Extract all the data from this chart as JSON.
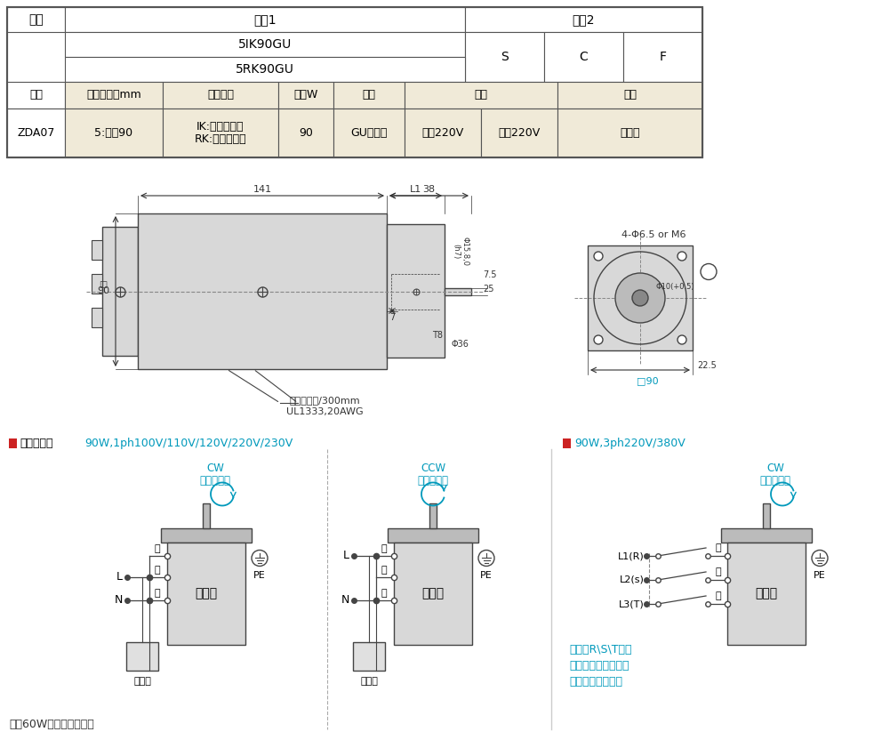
{
  "bg_color": "#ffffff",
  "cell_bg": "#f0ead8",
  "border_color": "#555555",
  "cyan": "#0099bb",
  "red_sq": "#cc2222",
  "dim_color": "#333333",
  "gray_light": "#d8d8d8",
  "gray_mid": "#bbbbbb",
  "gray_dark": "#888888",
  "dg": "#444444",
  "title1_bold": "接线示意图",
  "title1_cyan": " 90W,1ph100V/110V/120V/220V/230V",
  "title2_cyan": "90W,3ph220V/380V",
  "note_bottom": "注：60W以上默认带风扇",
  "note3_line1": "若对换R\\S\\T中任",
  "note3_line2": "意二条，电动机会作",
  "note3_line3": "逆时针方向运转。"
}
